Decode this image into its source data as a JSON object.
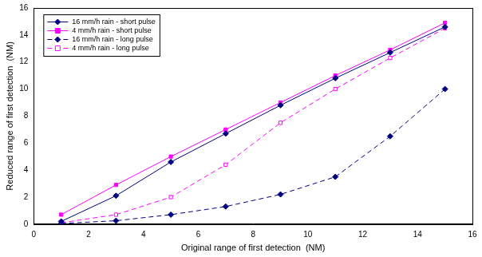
{
  "chart_data": {
    "type": "line",
    "x_label": "Original range of first detection  (NM)",
    "y_label": "Reduced range of first detection  (NM)",
    "x": [
      1,
      3,
      5,
      7,
      9,
      11,
      13,
      15
    ],
    "series": [
      {
        "name": "16 mm/h rain - short pulse",
        "color": "#000080",
        "marker": "diamond",
        "line_style": "solid",
        "values": [
          0.2,
          2.1,
          4.6,
          6.7,
          8.8,
          10.8,
          12.7,
          14.6
        ]
      },
      {
        "name": "4 mm/h rain - short pulse",
        "color": "#ff00ff",
        "marker": "square",
        "line_style": "solid",
        "values": [
          0.7,
          2.9,
          5.0,
          7.0,
          9.0,
          11.0,
          12.9,
          14.9
        ]
      },
      {
        "name": "16 mm/h rain - long pulse",
        "color": "#000080",
        "marker": "diamond",
        "line_style": "dashed",
        "values": [
          0.05,
          0.25,
          0.7,
          1.3,
          2.2,
          3.5,
          6.5,
          10.0
        ]
      },
      {
        "name": "4 mm/h rain - long pulse",
        "color": "#ff00ff",
        "marker": "open_square",
        "line_style": "dashed",
        "values": [
          0.1,
          0.7,
          2.0,
          4.4,
          7.5,
          10.0,
          12.3,
          14.5
        ]
      }
    ],
    "xlim": [
      0,
      16
    ],
    "xticks": [
      0,
      2,
      4,
      6,
      8,
      10,
      12,
      14,
      16
    ],
    "ylim": [
      0,
      16
    ],
    "yticks": [
      0,
      2,
      4,
      6,
      8,
      10,
      12,
      14,
      16
    ],
    "grid": false,
    "legend": "top-left"
  }
}
